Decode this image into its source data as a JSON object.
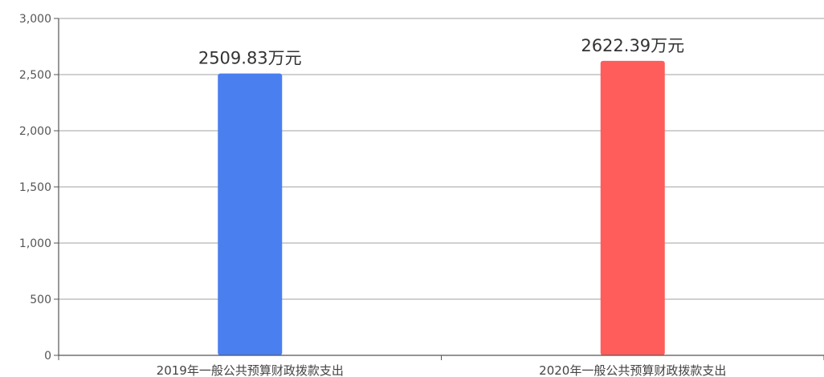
{
  "chart_data": {
    "type": "bar",
    "categories": [
      "2019年一般公共预算财政拨款支出",
      "2020年一般公共预算财政拨款支出"
    ],
    "values": [
      2509.83,
      2622.39
    ],
    "data_labels": [
      "2509.83万元",
      "2622.39万元"
    ],
    "bar_colors": [
      "#4a7ff0",
      "#ff5c5c"
    ],
    "title": "",
    "xlabel": "",
    "ylabel": "",
    "ylim": [
      0,
      3000
    ],
    "y_ticks": [
      0,
      500,
      1000,
      1500,
      2000,
      2500,
      3000
    ],
    "y_tick_labels": [
      "0",
      "500",
      "1,000",
      "1,500",
      "2,000",
      "2,500",
      "3,000"
    ],
    "grid": true,
    "legend": "none"
  }
}
